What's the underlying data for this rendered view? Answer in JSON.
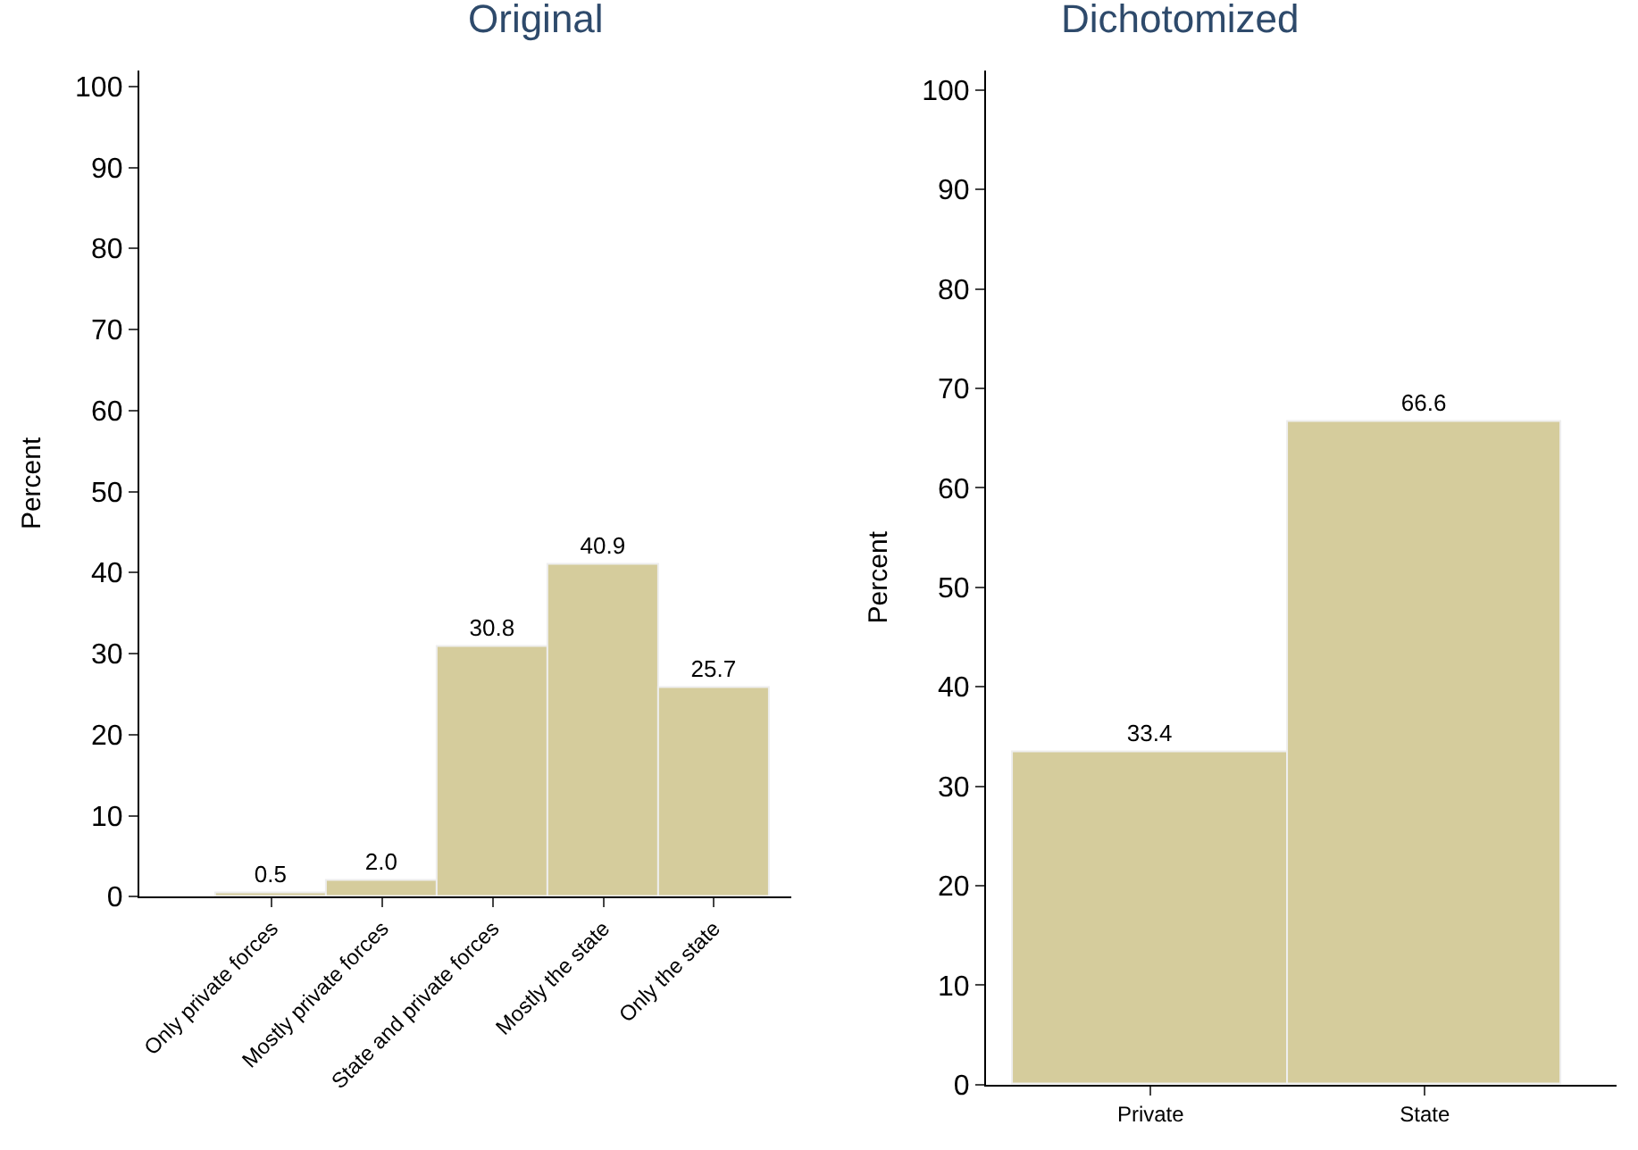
{
  "chart_data": [
    {
      "type": "bar",
      "title": "Original",
      "ylabel": "Percent",
      "categories": [
        "Only private forces",
        "Mostly private forces",
        "State and private forces",
        "Mostly the state",
        "Only the state"
      ],
      "values": [
        0.5,
        2.0,
        30.8,
        40.9,
        25.7
      ],
      "value_labels": [
        "0.5",
        "2.0",
        "30.8",
        "40.9",
        "25.7"
      ],
      "color": "#d5cc9c",
      "ylim": [
        0,
        102
      ],
      "yticks": [
        0,
        10,
        20,
        30,
        40,
        50,
        60,
        70,
        80,
        90,
        100
      ]
    },
    {
      "type": "bar",
      "title": "Dichotomized",
      "ylabel": "Percent",
      "categories": [
        "Private",
        "State"
      ],
      "values": [
        33.4,
        66.6
      ],
      "value_labels": [
        "33.4",
        "66.6"
      ],
      "color": "#d5cc9c",
      "ylim": [
        0,
        102
      ],
      "yticks": [
        0,
        10,
        20,
        30,
        40,
        50,
        60,
        70,
        80,
        90,
        100
      ]
    }
  ]
}
